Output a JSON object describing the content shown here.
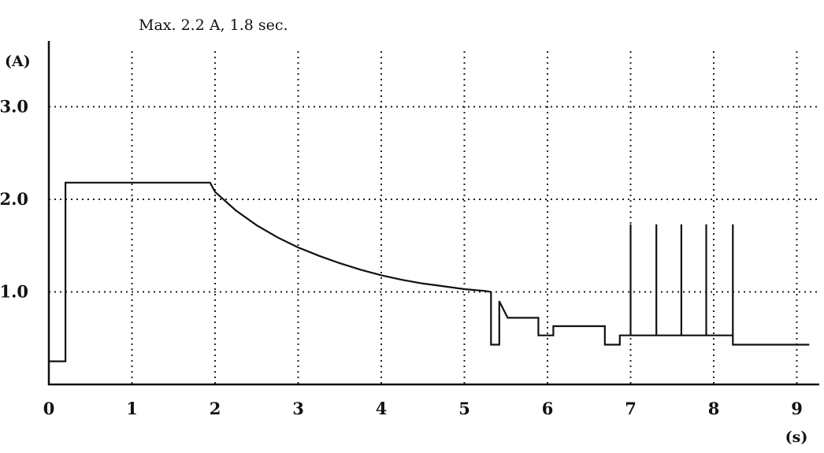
{
  "chart_data": {
    "type": "line",
    "title": "",
    "annotation": "Max. 2.2 A, 1.8 sec.",
    "xlabel": "(s)",
    "ylabel": "(A)",
    "xlim": [
      0,
      9.3
    ],
    "ylim": [
      0,
      3.6
    ],
    "x_ticks": [
      "0",
      "1",
      "2",
      "3",
      "4",
      "5",
      "6",
      "7",
      "8",
      "9"
    ],
    "x_tick_values": [
      0,
      1,
      2,
      3,
      4,
      5,
      6,
      7,
      8,
      9
    ],
    "y_ticks": [
      "1.0",
      "2.0",
      "3.0"
    ],
    "y_tick_values": [
      1.0,
      2.0,
      3.0
    ],
    "grid": "dotted",
    "series": [
      {
        "name": "",
        "color": "#111111",
        "points": [
          [
            0,
            0.25
          ],
          [
            0.2,
            0.25
          ],
          [
            0.2,
            2.18
          ],
          [
            1.94,
            2.18
          ],
          [
            2.0,
            2.08
          ],
          [
            2.25,
            1.88
          ],
          [
            2.5,
            1.72
          ],
          [
            2.75,
            1.59
          ],
          [
            3.0,
            1.48
          ],
          [
            3.25,
            1.39
          ],
          [
            3.5,
            1.31
          ],
          [
            3.75,
            1.24
          ],
          [
            4.0,
            1.18
          ],
          [
            4.25,
            1.13
          ],
          [
            4.5,
            1.09
          ],
          [
            4.75,
            1.06
          ],
          [
            5.0,
            1.03
          ],
          [
            5.25,
            1.01
          ],
          [
            5.32,
            1.0
          ],
          [
            5.32,
            0.43
          ],
          [
            5.42,
            0.43
          ],
          [
            5.42,
            0.9
          ],
          [
            5.52,
            0.72
          ],
          [
            5.89,
            0.72
          ],
          [
            5.89,
            0.53
          ],
          [
            6.07,
            0.53
          ],
          [
            6.07,
            0.63
          ],
          [
            6.69,
            0.63
          ],
          [
            6.69,
            0.43
          ],
          [
            6.87,
            0.43
          ],
          [
            6.87,
            0.53
          ],
          [
            7.0,
            0.53
          ],
          [
            7.0,
            1.73
          ],
          [
            7.0,
            0.53
          ],
          [
            7.31,
            0.53
          ],
          [
            7.31,
            1.73
          ],
          [
            7.31,
            0.53
          ],
          [
            7.61,
            0.53
          ],
          [
            7.61,
            1.73
          ],
          [
            7.61,
            0.53
          ],
          [
            7.91,
            0.53
          ],
          [
            7.91,
            1.73
          ],
          [
            7.91,
            0.53
          ],
          [
            8.23,
            0.53
          ],
          [
            8.23,
            1.73
          ],
          [
            8.23,
            0.43
          ],
          [
            9.15,
            0.43
          ]
        ]
      }
    ]
  }
}
